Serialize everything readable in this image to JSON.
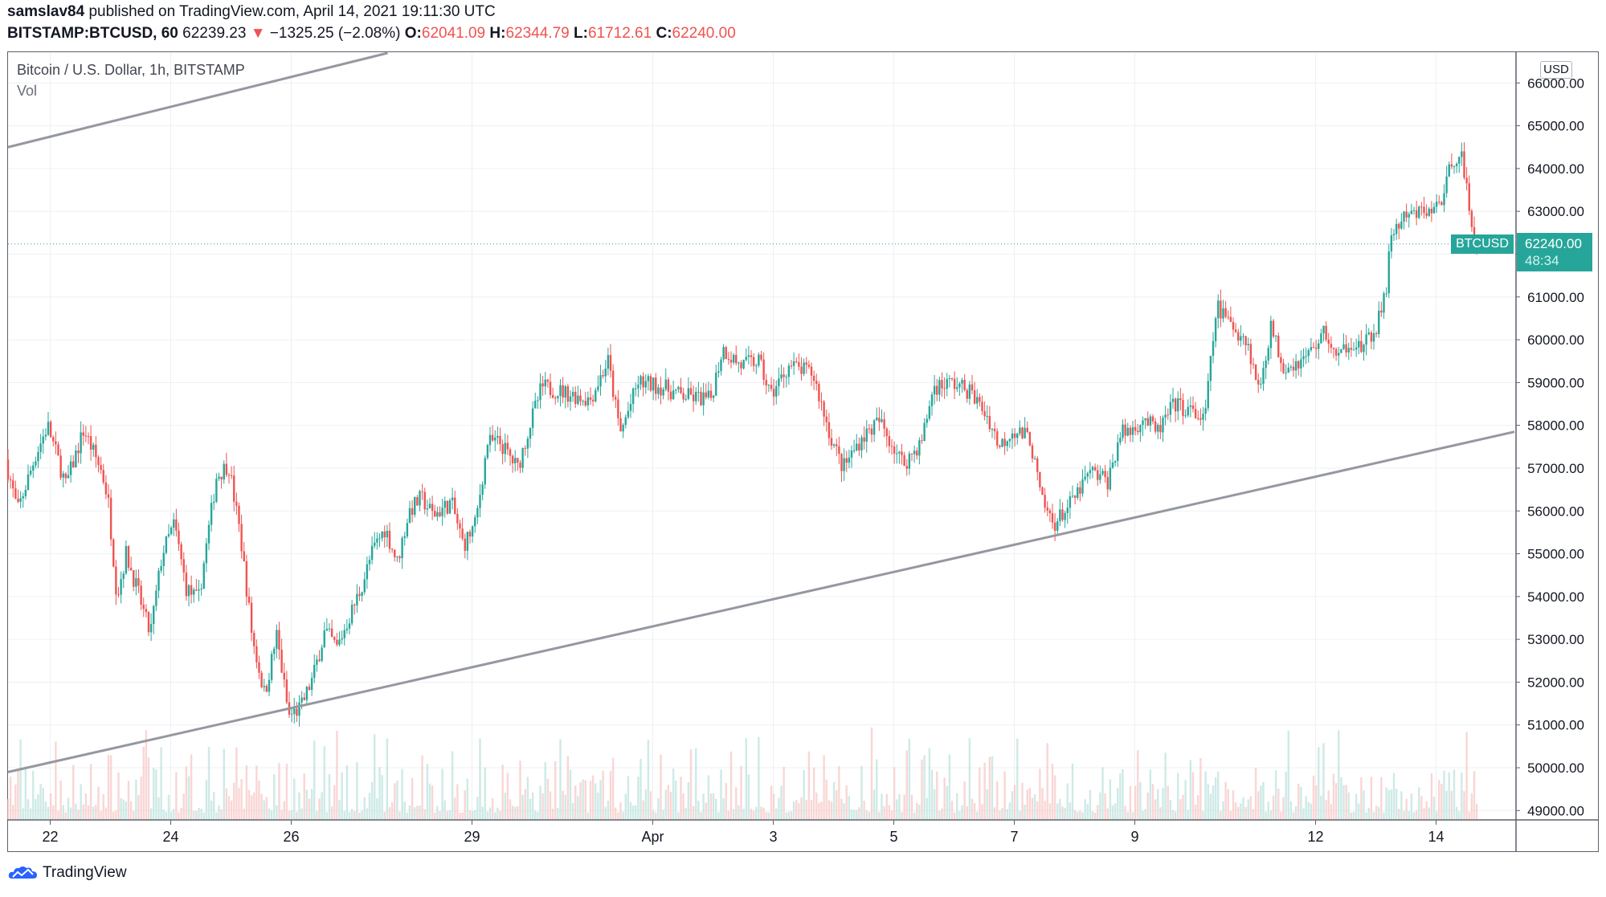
{
  "header": {
    "author": "samslav84",
    "published_text": "published on TradingView.com, April 14, 2021 19:11:30 UTC",
    "symbol": "BITSTAMP:BTCUSD, 60",
    "last": "62239.23",
    "change_arrow": "▼",
    "change": "−1325.25 (−2.08%)",
    "o_label": "O:",
    "o_value": "62041.09",
    "h_label": "H:",
    "h_value": "62344.79",
    "l_label": "L:",
    "l_value": "61712.61",
    "c_label": "C:",
    "c_value": "62240.00"
  },
  "legend": {
    "title": "Bitcoin / U.S. Dollar, 1h, BITSTAMP",
    "volume_label": "Vol"
  },
  "price_scale": {
    "currency": "USD"
  },
  "last_price": {
    "symbol": "BTCUSD",
    "price": "62240.00",
    "countdown": "48:34"
  },
  "footer": {
    "brand": "TradingView"
  },
  "colors": {
    "up": "#26a69a",
    "down": "#ef5350",
    "trendline": "#9598a1",
    "grid": "#eef0f4",
    "last_price": "#26a69a"
  },
  "chart_data": {
    "type": "candlestick",
    "interval": "1h",
    "yaxis": {
      "ylim": [
        48800,
        66700
      ],
      "ticks": [
        "49000.00",
        "50000.00",
        "51000.00",
        "52000.00",
        "53000.00",
        "54000.00",
        "55000.00",
        "56000.00",
        "57000.00",
        "58000.00",
        "59000.00",
        "60000.00",
        "61000.00",
        "62000.00",
        "63000.00",
        "64000.00",
        "65000.00",
        "66000.00"
      ]
    },
    "xaxis": {
      "ticks": [
        {
          "label": "22",
          "day": 0
        },
        {
          "label": "24",
          "day": 2
        },
        {
          "label": "26",
          "day": 4
        },
        {
          "label": "29",
          "day": 7
        },
        {
          "label": "Apr",
          "day": 10
        },
        {
          "label": "3",
          "day": 12
        },
        {
          "label": "5",
          "day": 14
        },
        {
          "label": "7",
          "day": 16
        },
        {
          "label": "9",
          "day": 18
        },
        {
          "label": "12",
          "day": 21
        },
        {
          "label": "14",
          "day": 23
        }
      ],
      "range_days": [
        -0.7,
        24.3
      ]
    },
    "price_path": [
      [
        -0.7,
        57200
      ],
      [
        -0.5,
        56000
      ],
      [
        -0.2,
        57300
      ],
      [
        0.0,
        58000
      ],
      [
        0.3,
        56600
      ],
      [
        0.6,
        57900
      ],
      [
        0.9,
        56900
      ],
      [
        1.0,
        56300
      ],
      [
        1.15,
        54000
      ],
      [
        1.3,
        55000
      ],
      [
        1.5,
        54100
      ],
      [
        1.7,
        53100
      ],
      [
        1.9,
        55000
      ],
      [
        2.1,
        55700
      ],
      [
        2.3,
        54200
      ],
      [
        2.5,
        53900
      ],
      [
        2.8,
        56800
      ],
      [
        3.0,
        57100
      ],
      [
        3.2,
        55400
      ],
      [
        3.4,
        53000
      ],
      [
        3.6,
        51700
      ],
      [
        3.8,
        53100
      ],
      [
        4.0,
        51200
      ],
      [
        4.2,
        51400
      ],
      [
        4.4,
        52100
      ],
      [
        4.6,
        53200
      ],
      [
        4.8,
        52800
      ],
      [
        5.0,
        53500
      ],
      [
        5.2,
        54200
      ],
      [
        5.4,
        55100
      ],
      [
        5.6,
        55600
      ],
      [
        5.8,
        54800
      ],
      [
        6.0,
        56000
      ],
      [
        6.2,
        56300
      ],
      [
        6.4,
        55900
      ],
      [
        6.7,
        56200
      ],
      [
        6.9,
        55200
      ],
      [
        7.1,
        55700
      ],
      [
        7.3,
        57600
      ],
      [
        7.5,
        57600
      ],
      [
        7.8,
        57000
      ],
      [
        8.0,
        58000
      ],
      [
        8.2,
        58900
      ],
      [
        8.5,
        58800
      ],
      [
        9.0,
        58600
      ],
      [
        9.3,
        59500
      ],
      [
        9.5,
        57800
      ],
      [
        9.8,
        59000
      ],
      [
        10.2,
        58900
      ],
      [
        10.5,
        58700
      ],
      [
        11.0,
        58600
      ],
      [
        11.2,
        59800
      ],
      [
        11.5,
        59400
      ],
      [
        11.8,
        59500
      ],
      [
        12.0,
        58700
      ],
      [
        12.3,
        59400
      ],
      [
        12.7,
        59200
      ],
      [
        13.0,
        57700
      ],
      [
        13.2,
        57000
      ],
      [
        13.5,
        57700
      ],
      [
        13.8,
        58100
      ],
      [
        14.0,
        57600
      ],
      [
        14.2,
        57100
      ],
      [
        14.5,
        57600
      ],
      [
        14.7,
        58900
      ],
      [
        15.0,
        59000
      ],
      [
        15.3,
        58800
      ],
      [
        15.6,
        58200
      ],
      [
        15.8,
        57500
      ],
      [
        16.0,
        57900
      ],
      [
        16.3,
        57700
      ],
      [
        16.5,
        56200
      ],
      [
        16.7,
        55700
      ],
      [
        17.0,
        56200
      ],
      [
        17.3,
        56900
      ],
      [
        17.6,
        56700
      ],
      [
        17.8,
        57800
      ],
      [
        18.0,
        57900
      ],
      [
        18.2,
        58200
      ],
      [
        18.4,
        57800
      ],
      [
        18.7,
        58500
      ],
      [
        19.0,
        58300
      ],
      [
        19.2,
        58100
      ],
      [
        19.4,
        60800
      ],
      [
        19.6,
        60400
      ],
      [
        19.9,
        60000
      ],
      [
        20.1,
        58800
      ],
      [
        20.3,
        60300
      ],
      [
        20.5,
        59400
      ],
      [
        20.8,
        59500
      ],
      [
        21.0,
        59800
      ],
      [
        21.2,
        60200
      ],
      [
        21.4,
        59500
      ],
      [
        21.6,
        60000
      ],
      [
        21.8,
        59800
      ],
      [
        22.0,
        60100
      ],
      [
        22.2,
        61000
      ],
      [
        22.3,
        62500
      ],
      [
        22.5,
        62800
      ],
      [
        22.8,
        63000
      ],
      [
        23.0,
        63000
      ],
      [
        23.2,
        63500
      ],
      [
        23.3,
        64200
      ],
      [
        23.45,
        64400
      ],
      [
        23.6,
        63000
      ],
      [
        23.7,
        62240
      ]
    ],
    "trendlines": [
      {
        "points": [
          [
            -0.7,
            64500
          ],
          [
            5.6,
            66700
          ]
        ]
      },
      {
        "points": [
          [
            -0.7,
            49900
          ],
          [
            24.3,
            57850
          ]
        ]
      }
    ]
  }
}
